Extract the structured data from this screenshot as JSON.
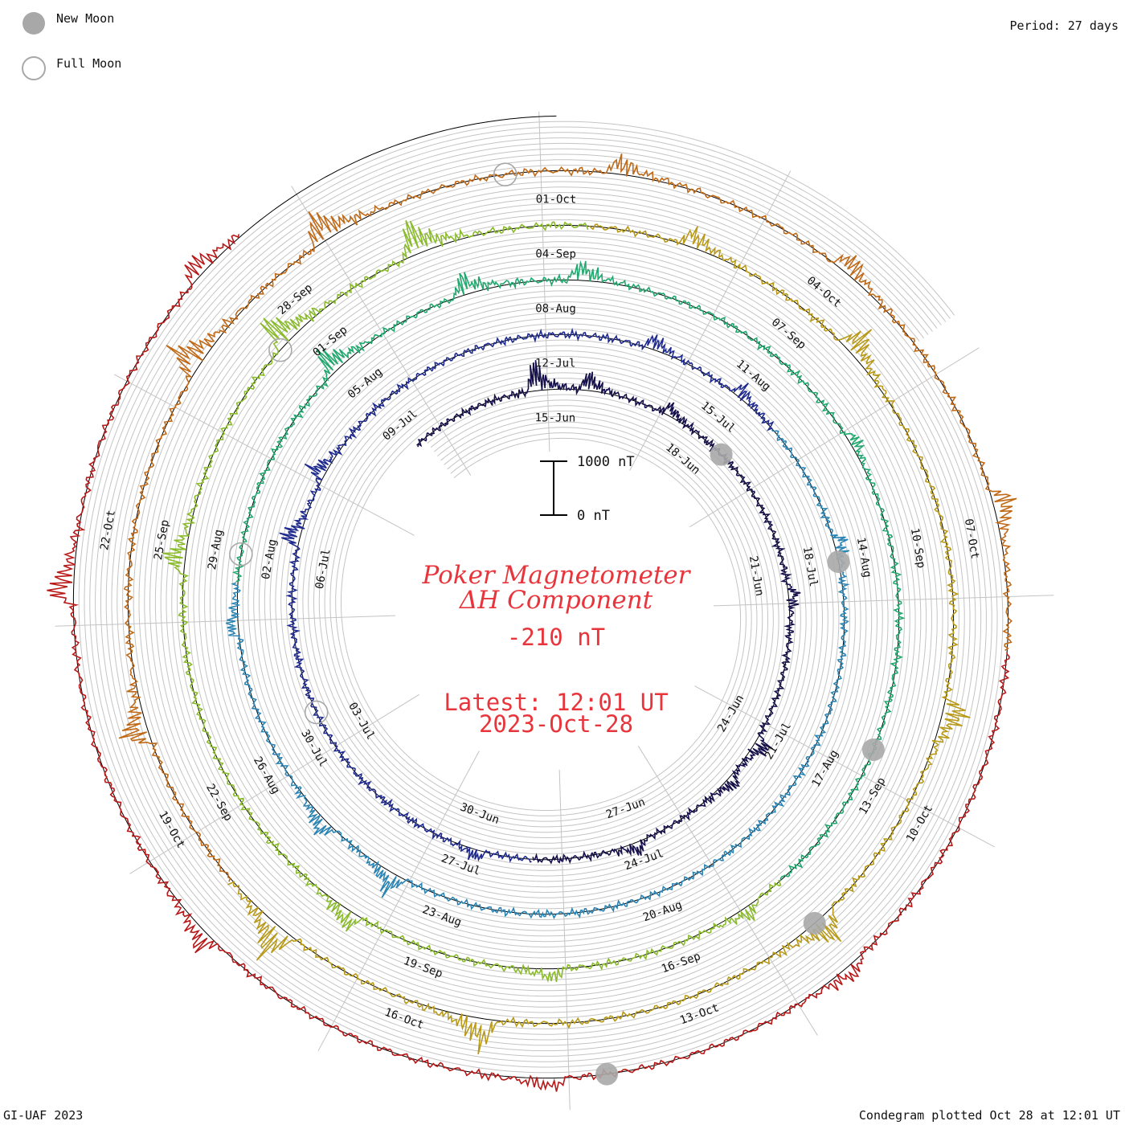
{
  "legend": {
    "new_moon_label": "New Moon",
    "full_moon_label": "Full Moon",
    "new_moon_color": "#a8a8a8",
    "full_moon_color": "#a8a8a8"
  },
  "header": {
    "period_label": "Period: 27 days"
  },
  "title": {
    "line1": "Poker Magnetometer",
    "line2": "ΔH Component"
  },
  "current_value": "-210 nT",
  "latest": {
    "line1": "Latest: 12:01 UT",
    "line2": "2023-Oct-28"
  },
  "scale_bar": {
    "top_label": "1000 nT",
    "bottom_label": "0 nT",
    "top_nT": 1000,
    "bottom_nT": 0
  },
  "footer": {
    "left": "GI-UAF 2023",
    "right": "Condegram plotted Oct 28 at 12:01 UT"
  },
  "colors": {
    "grid": "#c4c4c4",
    "baseline": "#000000",
    "text_red": "#e8353c"
  },
  "chart_data": {
    "type": "line",
    "subtype": "spiral condegram",
    "period_days": 27,
    "start_date": "2023-06-12",
    "end_date": "2023-10-28",
    "series_colors": [
      "#15104a",
      "#1e2a8e",
      "#2a84b4",
      "#20a86e",
      "#8abb2a",
      "#b89a18",
      "#c06a18",
      "#b81818"
    ],
    "date_ticks": [
      {
        "label": "15-Jun",
        "day": 3
      },
      {
        "label": "18-Jun",
        "day": 6
      },
      {
        "label": "21-Jun",
        "day": 9
      },
      {
        "label": "24-Jun",
        "day": 12
      },
      {
        "label": "27-Jun",
        "day": 15
      },
      {
        "label": "30-Jun",
        "day": 18
      },
      {
        "label": "03-Jul",
        "day": 21
      },
      {
        "label": "06-Jul",
        "day": 24
      },
      {
        "label": "09-Jul",
        "day": 27
      },
      {
        "label": "12-Jul",
        "day": 30
      },
      {
        "label": "15-Jul",
        "day": 33
      },
      {
        "label": "18-Jul",
        "day": 36
      },
      {
        "label": "21-Jul",
        "day": 39
      },
      {
        "label": "24-Jul",
        "day": 42
      },
      {
        "label": "27-Jul",
        "day": 45
      },
      {
        "label": "30-Jul",
        "day": 48
      },
      {
        "label": "02-Aug",
        "day": 51
      },
      {
        "label": "05-Aug",
        "day": 54
      },
      {
        "label": "08-Aug",
        "day": 57
      },
      {
        "label": "11-Aug",
        "day": 60
      },
      {
        "label": "14-Aug",
        "day": 63
      },
      {
        "label": "17-Aug",
        "day": 66
      },
      {
        "label": "20-Aug",
        "day": 69
      },
      {
        "label": "23-Aug",
        "day": 72
      },
      {
        "label": "26-Aug",
        "day": 75
      },
      {
        "label": "29-Aug",
        "day": 78
      },
      {
        "label": "01-Sep",
        "day": 81
      },
      {
        "label": "04-Sep",
        "day": 84
      },
      {
        "label": "07-Sep",
        "day": 87
      },
      {
        "label": "10-Sep",
        "day": 90
      },
      {
        "label": "13-Sep",
        "day": 93
      },
      {
        "label": "16-Sep",
        "day": 96
      },
      {
        "label": "19-Sep",
        "day": 99
      },
      {
        "label": "22-Sep",
        "day": 102
      },
      {
        "label": "25-Sep",
        "day": 105
      },
      {
        "label": "28-Sep",
        "day": 108
      },
      {
        "label": "01-Oct",
        "day": 111
      },
      {
        "label": "04-Oct",
        "day": 114
      },
      {
        "label": "07-Oct",
        "day": 117
      },
      {
        "label": "10-Oct",
        "day": 120
      },
      {
        "label": "13-Oct",
        "day": 123
      },
      {
        "label": "16-Oct",
        "day": 126
      },
      {
        "label": "19-Oct",
        "day": 129
      },
      {
        "label": "22-Oct",
        "day": 132
      }
    ],
    "new_moons": [
      6.5,
      36.0,
      65.5,
      94.5,
      124.0
    ],
    "full_moons": [
      21.5,
      51.0,
      80.5,
      110.5
    ],
    "disturbances": [
      {
        "day": 2.6,
        "nT": 700
      },
      {
        "day": 3.6,
        "nT": 450
      },
      {
        "day": 5.2,
        "nT": 300
      },
      {
        "day": 9.4,
        "nT": 250
      },
      {
        "day": 12.2,
        "nT": 400
      },
      {
        "day": 13.0,
        "nT": 300
      },
      {
        "day": 15.0,
        "nT": 300
      },
      {
        "day": 17.8,
        "nT": 250
      },
      {
        "day": 24.4,
        "nT": 450
      },
      {
        "day": 25.5,
        "nT": 400
      },
      {
        "day": 31.5,
        "nT": 350
      },
      {
        "day": 33.0,
        "nT": 300
      },
      {
        "day": 35.7,
        "nT": 300
      },
      {
        "day": 45.8,
        "nT": 500
      },
      {
        "day": 47.0,
        "nT": 400
      },
      {
        "day": 50.0,
        "nT": 300
      },
      {
        "day": 53.8,
        "nT": 600
      },
      {
        "day": 55.8,
        "nT": 500
      },
      {
        "day": 57.3,
        "nT": 450
      },
      {
        "day": 61.5,
        "nT": 250
      },
      {
        "day": 68.0,
        "nT": 300
      },
      {
        "day": 70.5,
        "nT": 300
      },
      {
        "day": 73.0,
        "nT": 450
      },
      {
        "day": 77.8,
        "nT": 500
      },
      {
        "day": 80.6,
        "nT": 750
      },
      {
        "day": 82.4,
        "nT": 800
      },
      {
        "day": 85.5,
        "nT": 450
      },
      {
        "day": 87.6,
        "nT": 600
      },
      {
        "day": 91.8,
        "nT": 600
      },
      {
        "day": 94.4,
        "nT": 650
      },
      {
        "day": 98.2,
        "nT": 700
      },
      {
        "day": 100.5,
        "nT": 800
      },
      {
        "day": 103.0,
        "nT": 600
      },
      {
        "day": 106.8,
        "nT": 750
      },
      {
        "day": 108.6,
        "nT": 700
      },
      {
        "day": 111.6,
        "nT": 400
      },
      {
        "day": 114.0,
        "nT": 450
      },
      {
        "day": 116.7,
        "nT": 500
      },
      {
        "day": 121.5,
        "nT": 350
      },
      {
        "day": 124.5,
        "nT": 300
      },
      {
        "day": 128.0,
        "nT": 450
      },
      {
        "day": 131.4,
        "nT": 600
      },
      {
        "day": 134.5,
        "nT": 450
      },
      {
        "day": 136.8,
        "nT": 350
      }
    ],
    "ylim": [
      -1000,
      1000
    ],
    "grid": true
  }
}
